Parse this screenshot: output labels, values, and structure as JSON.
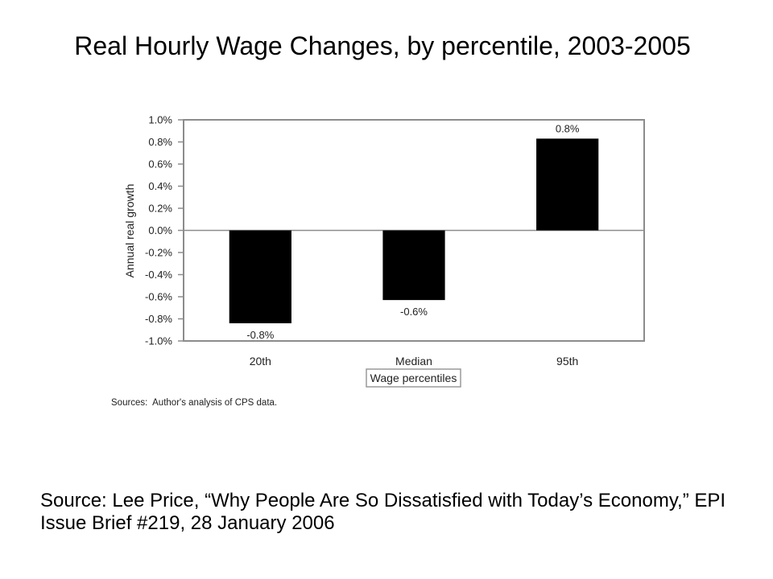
{
  "title": "Real Hourly Wage Changes, by percentile, 2003-2005",
  "chart_data": {
    "type": "bar",
    "categories": [
      "20th",
      "Median",
      "95th"
    ],
    "values": [
      -0.84,
      -0.63,
      0.83
    ],
    "data_labels": [
      "-0.8%",
      "-0.6%",
      "0.8%"
    ],
    "xlabel": "Wage percentiles",
    "ylabel": "Annual real growth",
    "ylim": [
      -1.0,
      1.0
    ],
    "yticks": [
      1.0,
      0.8,
      0.6,
      0.4,
      0.2,
      0.0,
      -0.2,
      -0.4,
      -0.6,
      -0.8,
      -1.0
    ],
    "ytick_labels": [
      "1.0%",
      "0.8%",
      "0.6%",
      "0.4%",
      "0.2%",
      "0.0%",
      "-0.2%",
      "-0.4%",
      "-0.6%",
      "-0.8%",
      "-1.0%"
    ],
    "grid": false,
    "colors": {
      "bars": "#000000",
      "frame": "#8c8c8c"
    },
    "note": "Sources:  Author's analysis of CPS data."
  },
  "source": {
    "lines": [
      "Source: Lee Price, “Why People Are So Dissatisfied with Today’s Economy,” EPI",
      "Issue Brief #219, 28 January 2006"
    ]
  }
}
